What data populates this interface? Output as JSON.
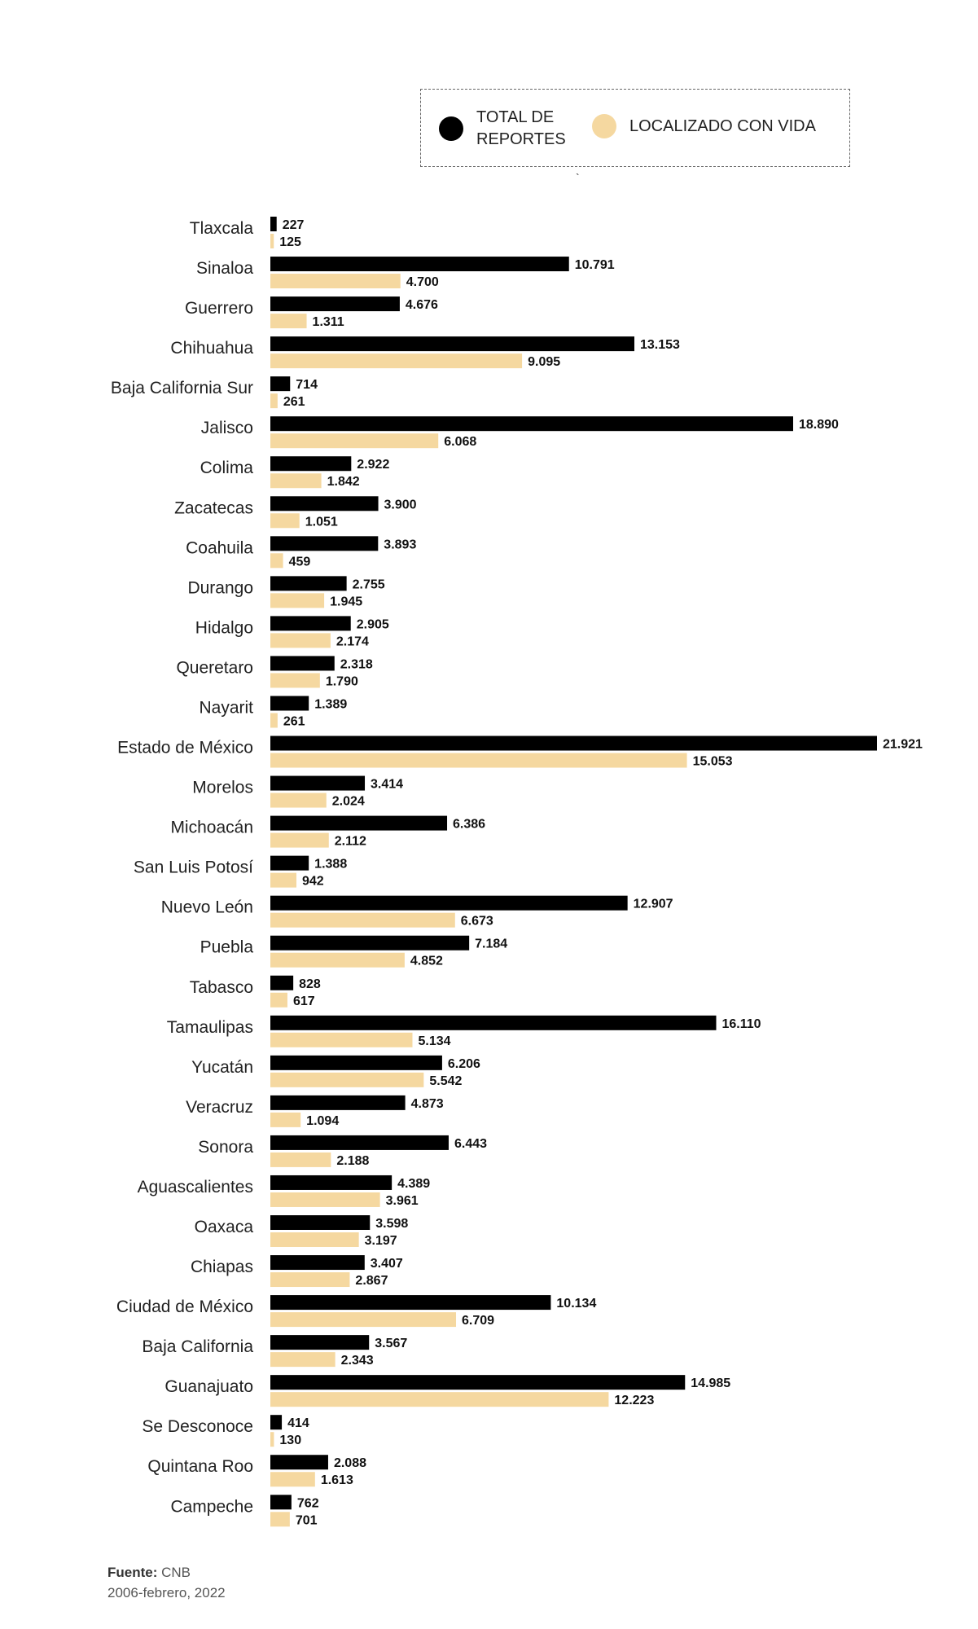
{
  "legend": {
    "total_label": "TOTAL DE REPORTES",
    "found_label": "LOCALIZADO CON VIDA",
    "total_color": "#000000",
    "found_color": "#f5d8a0"
  },
  "stray_mark": "`",
  "source": {
    "label": "Fuente:",
    "value": "CNB",
    "period": "2006-febrero, 2022"
  },
  "chart_data": {
    "type": "bar",
    "orientation": "horizontal",
    "title": "",
    "xlabel": "",
    "ylabel": "",
    "xlim": [
      0,
      21921
    ],
    "categories": [
      "Tlaxcala",
      "Sinaloa",
      "Guerrero",
      "Chihuahua",
      "Baja California Sur",
      "Jalisco",
      "Colima",
      "Zacatecas",
      "Coahuila",
      "Durango",
      "Hidalgo",
      "Queretaro",
      "Nayarit",
      "Estado de México",
      "Morelos",
      "Michoacán",
      "San Luis Potosí",
      "Nuevo León",
      "Puebla",
      "Tabasco",
      "Tamaulipas",
      "Yucatán",
      "Veracruz",
      "Sonora",
      "Aguascalientes",
      "Oaxaca",
      "Chiapas",
      "Ciudad de México",
      "Baja California",
      "Guanajuato",
      "Se Desconoce",
      "Quintana Roo",
      "Campeche"
    ],
    "series": [
      {
        "name": "TOTAL DE REPORTES",
        "color": "#000000",
        "values": [
          227,
          10791,
          4676,
          13153,
          714,
          18890,
          2922,
          3900,
          3893,
          2755,
          2905,
          2318,
          1389,
          21921,
          3414,
          6386,
          1388,
          12907,
          7184,
          828,
          16110,
          6206,
          4873,
          6443,
          4389,
          3598,
          3407,
          10134,
          3567,
          14985,
          414,
          2088,
          762
        ],
        "labels": [
          "227",
          "10.791",
          "4.676",
          "13.153",
          "714",
          "18.890",
          "2.922",
          "3.900",
          "3.893",
          "2.755",
          "2.905",
          "2.318",
          "1.389",
          "21.921",
          "3.414",
          "6.386",
          "1.388",
          "12.907",
          "7.184",
          "828",
          "16.110",
          "6.206",
          "4.873",
          "6.443",
          "4.389",
          "3.598",
          "3.407",
          "10.134",
          "3.567",
          "14.985",
          "414",
          "2.088",
          "762"
        ]
      },
      {
        "name": "LOCALIZADO CON VIDA",
        "color": "#f5d8a0",
        "values": [
          125,
          4700,
          1311,
          9095,
          261,
          6068,
          1842,
          1051,
          459,
          1945,
          2174,
          1790,
          261,
          15053,
          2024,
          2112,
          942,
          6673,
          4852,
          617,
          5134,
          5542,
          1094,
          2188,
          3961,
          3197,
          2867,
          6709,
          2343,
          12223,
          130,
          1613,
          701
        ],
        "labels": [
          "125",
          "4.700",
          "1.311",
          "9.095",
          "261",
          "6.068",
          "1.842",
          "1.051",
          "459",
          "1.945",
          "2.174",
          "1.790",
          "261",
          "15.053",
          "2.024",
          "2.112",
          "942",
          "6.673",
          "4.852",
          "617",
          "5.134",
          "5.542",
          "1.094",
          "2.188",
          "3.961",
          "3.197",
          "2.867",
          "6.709",
          "2.343",
          "12.223",
          "130",
          "1.613",
          "701"
        ]
      }
    ]
  }
}
